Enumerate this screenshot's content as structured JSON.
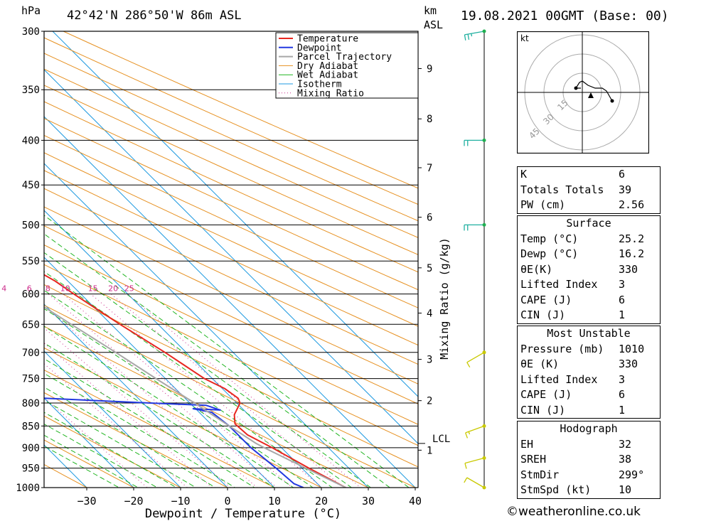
{
  "header": {
    "pressure_unit": "hPa",
    "location": "42°42'N  286°50'W  86m  ASL",
    "height_unit_km": "km",
    "height_unit_asl": "ASL",
    "timestamp": "19.08.2021  00GMT  (Base: 00)"
  },
  "chart_data": {
    "type": "line",
    "subtype": "skew-T log-P sounding",
    "xlabel": "Dewpoint / Temperature (°C)",
    "ylabel": "hPa",
    "xlim": [
      -40,
      40
    ],
    "ylim": [
      1000,
      300
    ],
    "x_ticks": [
      -30,
      -20,
      -10,
      0,
      10,
      20,
      30,
      40
    ],
    "pressure_ticks": [
      300,
      350,
      400,
      450,
      500,
      550,
      600,
      650,
      700,
      750,
      800,
      850,
      900,
      950,
      1000
    ],
    "height_axis": {
      "label_km": "km",
      "label_asl": "ASL",
      "ticks": [
        {
          "km": "1",
          "p": 906
        },
        {
          "km": "2",
          "p": 795
        },
        {
          "km": "3",
          "p": 713
        },
        {
          "km": "4",
          "p": 631
        },
        {
          "km": "5",
          "p": 560
        },
        {
          "km": "6",
          "p": 490
        },
        {
          "km": "7",
          "p": 430
        },
        {
          "km": "8",
          "p": 378
        },
        {
          "km": "9",
          "p": 331
        }
      ],
      "lcl_label": "LCL",
      "lcl_p": 890
    },
    "mixing_ratio_label": "Mixing Ratio (g/kg)",
    "mixing_ratio_labels": [
      "1",
      "2",
      "3",
      "4",
      "6",
      "8",
      "10",
      "15",
      "20",
      "25"
    ],
    "legend": [
      "Temperature",
      "Dewpoint",
      "Parcel Trajectory",
      "Dry Adiabat",
      "Wet Adiabat",
      "Isotherm",
      "Mixing Ratio"
    ],
    "legend_placement": "top-right",
    "colors": {
      "temperature": "#e8261f",
      "dewpoint": "#2238e0",
      "parcel": "#a8a8a8",
      "dry_adiabat": "#e69020",
      "wet_adiabat": "#21b521",
      "isotherm": "#1f9ae0",
      "mixing_ratio": "#cc2a8a",
      "wind_barb": "#c9c900",
      "mixing_label": "#cc2a8a"
    },
    "series": [
      {
        "name": "Temperature",
        "points": [
          [
            1000,
            25.2
          ],
          [
            950,
            21.5
          ],
          [
            900,
            18.0
          ],
          [
            870,
            15.5
          ],
          [
            845,
            15.2
          ],
          [
            825,
            17.0
          ],
          [
            800,
            20.7
          ],
          [
            790,
            21.3
          ],
          [
            770,
            20.5
          ],
          [
            750,
            18.3
          ],
          [
            700,
            15.5
          ],
          [
            650,
            11.9
          ],
          [
            600,
            8.5
          ],
          [
            580,
            7.3
          ],
          [
            550,
            4.0
          ],
          [
            500,
            -2.8
          ],
          [
            480,
            -4.5
          ],
          [
            450,
            -7.5
          ],
          [
            420,
            -11.0
          ],
          [
            400,
            -14.0
          ],
          [
            380,
            -16.0
          ],
          [
            350,
            -22.0
          ],
          [
            330,
            -25.5
          ],
          [
            300,
            -31.0
          ]
        ]
      },
      {
        "name": "Dewpoint",
        "points": [
          [
            1000,
            16.2
          ],
          [
            990,
            15.0
          ],
          [
            950,
            14.5
          ],
          [
            900,
            13.5
          ],
          [
            850,
            13.5
          ],
          [
            820,
            12.7
          ],
          [
            812,
            9.5
          ],
          [
            815,
            15.0
          ],
          [
            805,
            13.0
          ],
          [
            800,
            1.5
          ],
          [
            790,
            -20.0
          ],
          [
            750,
            -28.0
          ],
          [
            735,
            -33.0
          ],
          [
            700,
            -14.0
          ],
          [
            680,
            -12.0
          ],
          [
            665,
            -18.0
          ],
          [
            650,
            -18.0
          ],
          [
            625,
            -15.0
          ],
          [
            620,
            -2.0
          ],
          [
            615,
            -15.0
          ],
          [
            610,
            -7.0
          ],
          [
            605,
            -15.0
          ],
          [
            600,
            -17.0
          ],
          [
            570,
            -17.0
          ],
          [
            550,
            -20.0
          ],
          [
            540,
            5.0
          ],
          [
            525,
            5.0
          ],
          [
            520,
            3.5
          ],
          [
            500,
            4.0
          ],
          [
            480,
            2.0
          ],
          [
            450,
            3.0
          ],
          [
            430,
            -3.0
          ],
          [
            420,
            -4.0
          ],
          [
            410,
            -4.5
          ],
          [
            400,
            -9.0
          ],
          [
            385,
            -11.0
          ],
          [
            360,
            -12.0
          ],
          [
            350,
            -12.5
          ],
          [
            340,
            -20.0
          ],
          [
            330,
            -19.0
          ],
          [
            320,
            -23.0
          ],
          [
            310,
            -26.0
          ],
          [
            300,
            -28.0
          ]
        ]
      },
      {
        "name": "Parcel Trajectory",
        "points": [
          [
            1000,
            25.2
          ],
          [
            950,
            20.8
          ],
          [
            900,
            16.3
          ],
          [
            890,
            15.5
          ],
          [
            850,
            13.5
          ],
          [
            800,
            11.0
          ],
          [
            750,
            8.0
          ],
          [
            700,
            5.0
          ],
          [
            650,
            1.5
          ],
          [
            600,
            -2.2
          ],
          [
            550,
            -6.5
          ],
          [
            500,
            -11.5
          ],
          [
            450,
            -17.0
          ],
          [
            400,
            -23.5
          ],
          [
            350,
            -31.0
          ],
          [
            300,
            -40.0
          ]
        ]
      }
    ],
    "wind_barbs": [
      {
        "p": 300,
        "dir_deg": 260,
        "speed_kt": 25
      },
      {
        "p": 400,
        "dir_deg": 270,
        "speed_kt": 20
      },
      {
        "p": 500,
        "dir_deg": 270,
        "speed_kt": 20
      },
      {
        "p": 700,
        "dir_deg": 240,
        "speed_kt": 10
      },
      {
        "p": 850,
        "dir_deg": 250,
        "speed_kt": 15
      },
      {
        "p": 925,
        "dir_deg": 255,
        "speed_kt": 10
      },
      {
        "p": 1000,
        "dir_deg": 300,
        "speed_kt": 8
      }
    ]
  },
  "hodograph": {
    "unit": "kt",
    "ring_labels": [
      "15",
      "30",
      "45"
    ]
  },
  "indices": [
    {
      "label": "K",
      "value": "6"
    },
    {
      "label": "Totals Totals",
      "value": "39"
    },
    {
      "label": "PW (cm)",
      "value": "2.56"
    }
  ],
  "surface": {
    "title": "Surface",
    "rows": [
      {
        "label": "Temp (°C)",
        "value": "25.2"
      },
      {
        "label": "Dewp (°C)",
        "value": "16.2"
      },
      {
        "label": "θE(K)",
        "value": "330"
      },
      {
        "label": "Lifted Index",
        "value": "3"
      },
      {
        "label": "CAPE (J)",
        "value": "6"
      },
      {
        "label": "CIN (J)",
        "value": "1"
      }
    ]
  },
  "most_unstable": {
    "title": "Most Unstable",
    "rows": [
      {
        "label": "Pressure (mb)",
        "value": "1010"
      },
      {
        "label": "θE (K)",
        "value": "330"
      },
      {
        "label": "Lifted Index",
        "value": "3"
      },
      {
        "label": "CAPE (J)",
        "value": "6"
      },
      {
        "label": "CIN (J)",
        "value": "1"
      }
    ]
  },
  "hodograph_stats": {
    "title": "Hodograph",
    "rows": [
      {
        "label": "EH",
        "value": "32"
      },
      {
        "label": "SREH",
        "value": "38"
      },
      {
        "label": "StmDir",
        "value": "299°"
      },
      {
        "label": "StmSpd (kt)",
        "value": "10"
      }
    ]
  },
  "copyright": "©weatheronline.co.uk"
}
